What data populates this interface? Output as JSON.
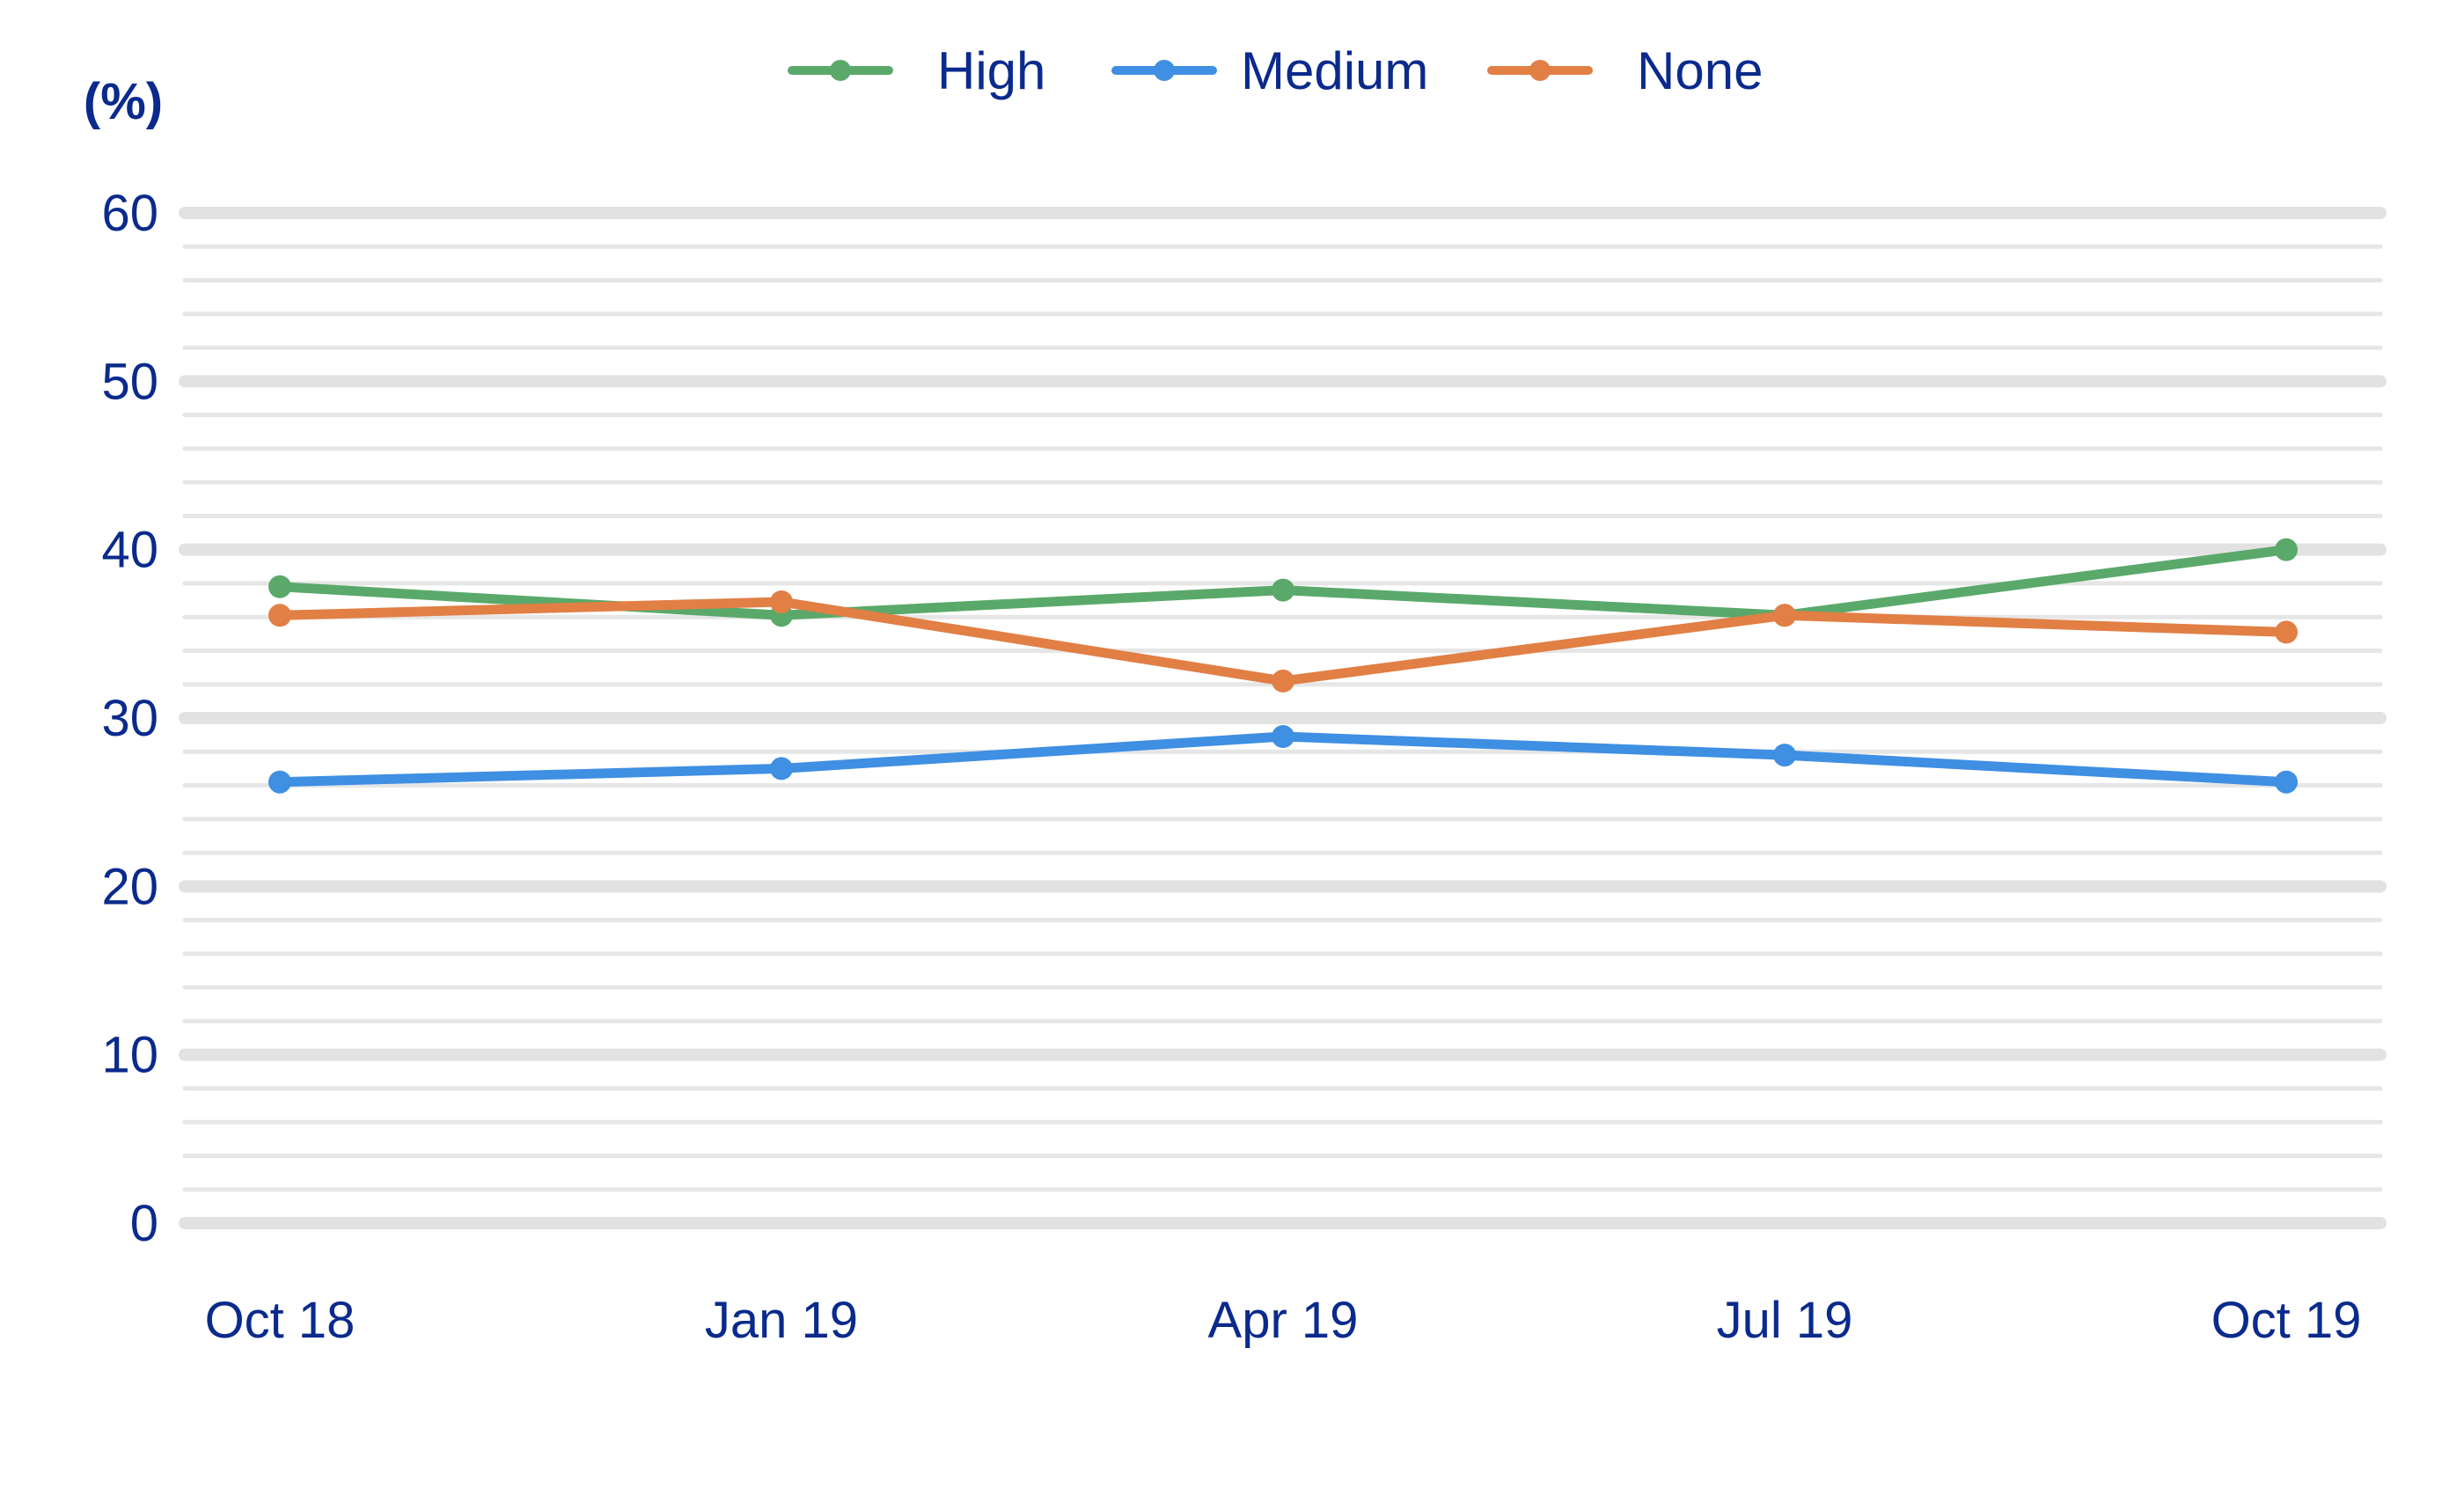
{
  "chart_data": {
    "type": "line",
    "title": "",
    "xlabel": "",
    "ylabel": "(%)",
    "categories": [
      "Oct 18",
      "Jan 19",
      "Apr 19",
      "Jul 19",
      "Oct 19"
    ],
    "ylim": [
      0,
      60
    ],
    "yticks": [
      "0",
      "10",
      "20",
      "30",
      "40",
      "50",
      "60"
    ],
    "grid": true,
    "legend_position": "top-center",
    "series": [
      {
        "name": "High",
        "color": "#5aa96a",
        "values": [
          37.8,
          36.1,
          37.6,
          36.1,
          40.0
        ]
      },
      {
        "name": "Medium",
        "color": "#3f8fe3",
        "values": [
          26.2,
          27.0,
          28.9,
          27.8,
          26.2
        ]
      },
      {
        "name": "None",
        "color": "#e17f45",
        "values": [
          36.1,
          36.9,
          32.2,
          36.1,
          35.1
        ]
      }
    ]
  }
}
